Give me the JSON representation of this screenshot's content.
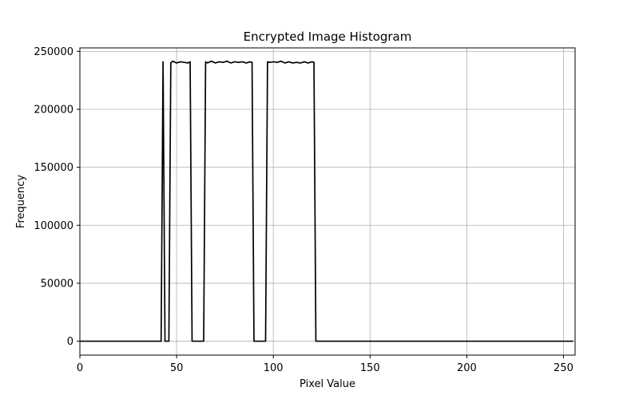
{
  "chart_data": {
    "type": "line",
    "title": "Encrypted Image Histogram",
    "xlabel": "Pixel Value",
    "ylabel": "Frequency",
    "xlim": [
      0,
      256
    ],
    "ylim": [
      -12000,
      253000
    ],
    "grid": true,
    "x_ticks": [
      0,
      50,
      100,
      150,
      200,
      250
    ],
    "x_tick_labels": [
      "0",
      "50",
      "100",
      "150",
      "200",
      "250"
    ],
    "y_ticks": [
      0,
      50000,
      100000,
      150000,
      200000,
      250000
    ],
    "y_tick_labels": [
      "0",
      "50000",
      "100000",
      "150000",
      "200000",
      "250000"
    ],
    "series": [
      {
        "color": "#000000",
        "x": [
          0,
          42,
          43,
          44,
          46,
          47,
          48,
          50,
          52,
          54,
          56,
          57,
          58,
          64,
          65,
          66,
          68,
          70,
          72,
          74,
          76,
          78,
          80,
          82,
          84,
          86,
          88,
          89,
          90,
          96,
          97,
          98,
          100,
          102,
          104,
          106,
          108,
          110,
          112,
          114,
          116,
          118,
          120,
          121,
          122,
          255
        ],
        "y": [
          0,
          0,
          241000,
          0,
          0,
          240000,
          241500,
          240000,
          241000,
          240500,
          240000,
          241000,
          0,
          0,
          241000,
          240000,
          241500,
          240000,
          241000,
          240500,
          241500,
          240000,
          241000,
          240500,
          241000,
          240000,
          241000,
          240500,
          0,
          0,
          241000,
          240500,
          241000,
          240500,
          241500,
          240000,
          241000,
          240000,
          240500,
          240000,
          241000,
          240000,
          241000,
          240500,
          0,
          0
        ]
      }
    ]
  }
}
